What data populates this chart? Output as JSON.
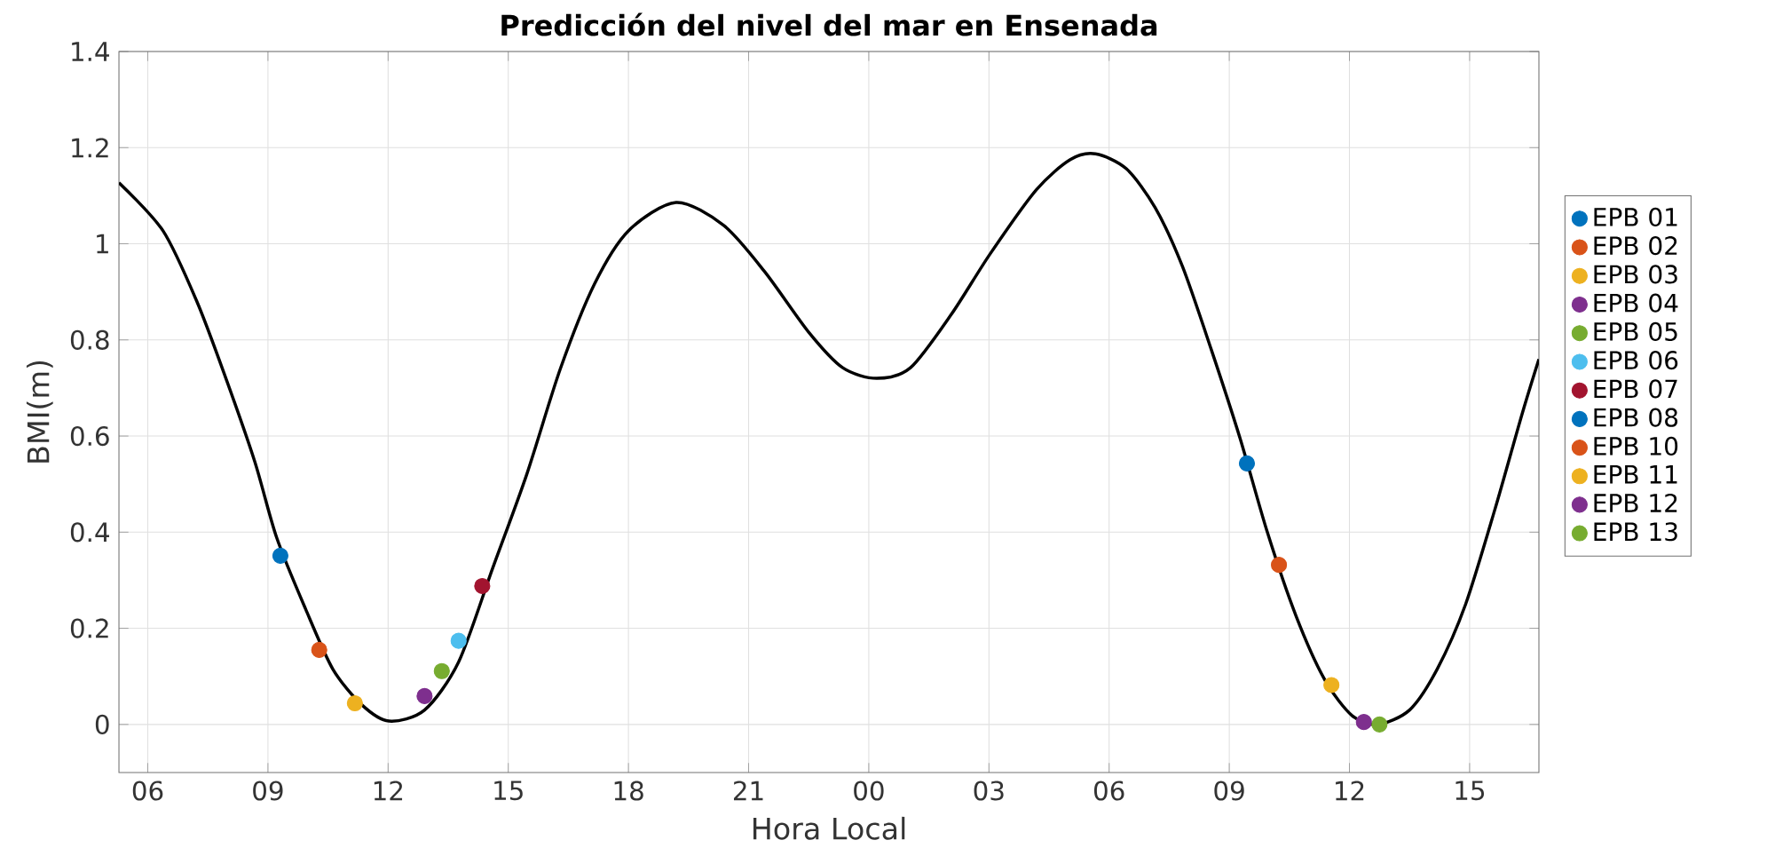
{
  "chart_data": {
    "type": "scatter",
    "title": "Predicción del nivel del mar en Ensenada",
    "xlabel": "Hora Local",
    "ylabel": "BMI(m)",
    "xlim": [
      5.28,
      40.73
    ],
    "ylim": [
      -0.1,
      1.4
    ],
    "xticks": [
      {
        "value": 6,
        "label": "06"
      },
      {
        "value": 9,
        "label": "09"
      },
      {
        "value": 12,
        "label": "12"
      },
      {
        "value": 15,
        "label": "15"
      },
      {
        "value": 18,
        "label": "18"
      },
      {
        "value": 21,
        "label": "21"
      },
      {
        "value": 24,
        "label": "00"
      },
      {
        "value": 27,
        "label": "03"
      },
      {
        "value": 30,
        "label": "06"
      },
      {
        "value": 33,
        "label": "09"
      },
      {
        "value": 36,
        "label": "12"
      },
      {
        "value": 39,
        "label": "15"
      }
    ],
    "yticks": [
      0,
      0.2,
      0.4,
      0.6,
      0.8,
      1,
      1.2,
      1.4
    ],
    "grid": true,
    "legend": "right",
    "marker": "circle",
    "series": [
      {
        "type": "line",
        "color": "#000000",
        "line_style": "solid",
        "marker": "none",
        "x": [
          5.28,
          6.38,
          7.23,
          7.95,
          8.67,
          9.22,
          9.94,
          10.62,
          11.34,
          12.02,
          12.91,
          13.76,
          14.61,
          15.46,
          16.3,
          17.15,
          18.0,
          19.19,
          20.38,
          21.4,
          22.5,
          23.35,
          24.2,
          25.04,
          26.06,
          27.03,
          28.18,
          29.03,
          29.66,
          30.43,
          31.15,
          31.83,
          32.55,
          33.27,
          33.95,
          34.67,
          35.39,
          36.07,
          36.7,
          37.5,
          38.19,
          38.9,
          39.63,
          40.31,
          40.73
        ],
        "values": [
          1.127,
          1.027,
          0.879,
          0.72,
          0.547,
          0.388,
          0.24,
          0.115,
          0.041,
          0.007,
          0.03,
          0.13,
          0.325,
          0.52,
          0.74,
          0.916,
          1.027,
          1.086,
          1.038,
          0.942,
          0.816,
          0.742,
          0.72,
          0.742,
          0.853,
          0.979,
          1.112,
          1.175,
          1.187,
          1.156,
          1.075,
          0.953,
          0.78,
          0.595,
          0.4,
          0.225,
          0.092,
          0.018,
          0.0,
          0.03,
          0.115,
          0.25,
          0.447,
          0.646,
          0.76
        ]
      },
      {
        "name": "EPB 01",
        "color": "#0072bd",
        "x": [
          9.31
        ],
        "values": [
          0.351
        ]
      },
      {
        "name": "EPB 02",
        "color": "#d95319",
        "x": [
          10.28
        ],
        "values": [
          0.155
        ]
      },
      {
        "name": "EPB 03",
        "color": "#edb120",
        "x": [
          11.17
        ],
        "values": [
          0.044
        ]
      },
      {
        "name": "EPB 04",
        "color": "#7e2f8e",
        "x": [
          12.91
        ],
        "values": [
          0.059
        ]
      },
      {
        "name": "EPB 05",
        "color": "#77ac30",
        "x": [
          13.34
        ],
        "values": [
          0.111
        ]
      },
      {
        "name": "EPB 06",
        "color": "#4dbeee",
        "x": [
          13.76
        ],
        "values": [
          0.174
        ]
      },
      {
        "name": "EPB 07",
        "color": "#a2142f",
        "x": [
          14.35
        ],
        "values": [
          0.288
        ]
      },
      {
        "name": "EPB 08",
        "color": "#0072bd",
        "x": [
          33.44
        ],
        "values": [
          0.543
        ]
      },
      {
        "name": "EPB 10",
        "color": "#d95319",
        "x": [
          34.24
        ],
        "values": [
          0.332
        ]
      },
      {
        "name": "EPB 11",
        "color": "#edb120",
        "x": [
          35.55
        ],
        "values": [
          0.082
        ]
      },
      {
        "name": "EPB 12",
        "color": "#7e2f8e",
        "x": [
          36.36
        ],
        "values": [
          0.005
        ]
      },
      {
        "name": "EPB 13",
        "color": "#77ac30",
        "x": [
          36.75
        ],
        "values": [
          0.0
        ]
      }
    ]
  }
}
